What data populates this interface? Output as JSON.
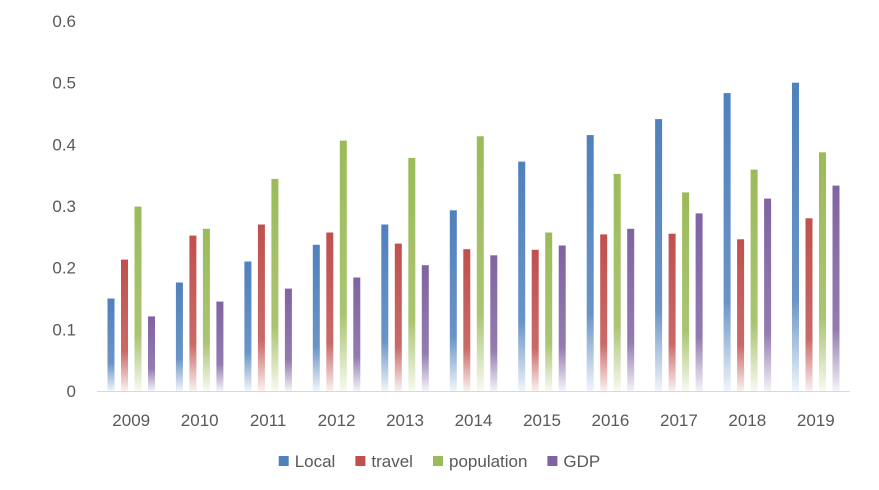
{
  "chart_data": {
    "type": "bar",
    "title": "",
    "xlabel": "",
    "ylabel": "",
    "categories": [
      "2009",
      "2010",
      "2011",
      "2012",
      "2013",
      "2014",
      "2015",
      "2016",
      "2017",
      "2018",
      "2019"
    ],
    "ylim": [
      0,
      0.6
    ],
    "yticks": [
      "0",
      "0.1",
      "0.2",
      "0.3",
      "0.4",
      "0.5",
      "0.6"
    ],
    "grid": false,
    "legend_position": "bottom",
    "series": [
      {
        "name": "Local",
        "color": "#4F81BD",
        "values": [
          0.15,
          0.176,
          0.21,
          0.237,
          0.27,
          0.293,
          0.372,
          0.415,
          0.441,
          0.483,
          0.5
        ]
      },
      {
        "name": "travel",
        "color": "#C0504D",
        "values": [
          0.213,
          0.252,
          0.27,
          0.257,
          0.239,
          0.23,
          0.229,
          0.254,
          0.255,
          0.246,
          0.28
        ]
      },
      {
        "name": "population",
        "color": "#9BBB59",
        "values": [
          0.299,
          0.263,
          0.344,
          0.406,
          0.378,
          0.413,
          0.257,
          0.352,
          0.322,
          0.359,
          0.387
        ]
      },
      {
        "name": "GDP",
        "color": "#8064A2",
        "values": [
          0.121,
          0.145,
          0.166,
          0.184,
          0.204,
          0.22,
          0.236,
          0.263,
          0.288,
          0.312,
          0.333
        ]
      }
    ]
  }
}
